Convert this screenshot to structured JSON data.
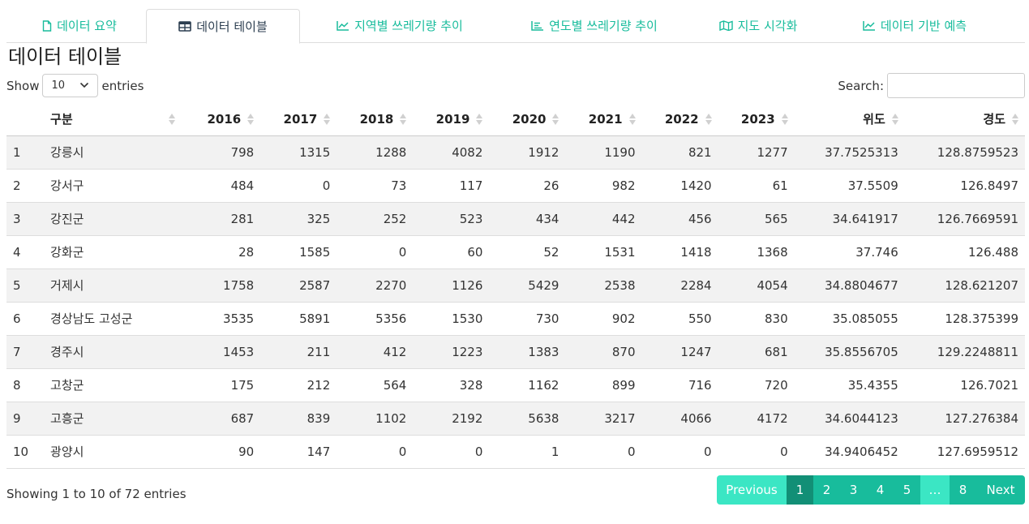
{
  "tabs": [
    {
      "label": "데이터 요약",
      "icon": "file-icon"
    },
    {
      "label": "데이터 테이블",
      "icon": "table-icon"
    },
    {
      "label": "지역별 쓰레기량 추이",
      "icon": "line-chart-icon"
    },
    {
      "label": "연도별 쓰레기량 추이",
      "icon": "bar-chart-icon"
    },
    {
      "label": "지도 시각화",
      "icon": "map-icon"
    },
    {
      "label": "데이터 기반 예측",
      "icon": "line-chart-icon"
    }
  ],
  "active_tab": "데이터 테이블",
  "page_title": "데이터 테이블",
  "length": {
    "show": "Show",
    "value": "10",
    "entries": "entries"
  },
  "search": {
    "label": "Search:",
    "value": ""
  },
  "table": {
    "headers": [
      "",
      "구분",
      "2016",
      "2017",
      "2018",
      "2019",
      "2020",
      "2021",
      "2022",
      "2023",
      "위도",
      "경도"
    ],
    "rows": [
      [
        "1",
        "강릉시",
        "798",
        "1315",
        "1288",
        "4082",
        "1912",
        "1190",
        "821",
        "1277",
        "37.7525313",
        "128.8759523"
      ],
      [
        "2",
        "강서구",
        "484",
        "0",
        "73",
        "117",
        "26",
        "982",
        "1420",
        "61",
        "37.5509",
        "126.8497"
      ],
      [
        "3",
        "강진군",
        "281",
        "325",
        "252",
        "523",
        "434",
        "442",
        "456",
        "565",
        "34.641917",
        "126.7669591"
      ],
      [
        "4",
        "강화군",
        "28",
        "1585",
        "0",
        "60",
        "52",
        "1531",
        "1418",
        "1368",
        "37.746",
        "126.488"
      ],
      [
        "5",
        "거제시",
        "1758",
        "2587",
        "2270",
        "1126",
        "5429",
        "2538",
        "2284",
        "4054",
        "34.8804677",
        "128.621207"
      ],
      [
        "6",
        "경상남도 고성군",
        "3535",
        "5891",
        "5356",
        "1530",
        "730",
        "902",
        "550",
        "830",
        "35.085055",
        "128.375399"
      ],
      [
        "7",
        "경주시",
        "1453",
        "211",
        "412",
        "1223",
        "1383",
        "870",
        "1247",
        "681",
        "35.8556705",
        "129.2248811"
      ],
      [
        "8",
        "고창군",
        "175",
        "212",
        "564",
        "328",
        "1162",
        "899",
        "716",
        "720",
        "35.4355",
        "126.7021"
      ],
      [
        "9",
        "고흥군",
        "687",
        "839",
        "1102",
        "2192",
        "5638",
        "3217",
        "4066",
        "4172",
        "34.6044123",
        "127.276384"
      ],
      [
        "10",
        "광양시",
        "90",
        "147",
        "0",
        "0",
        "1",
        "0",
        "0",
        "0",
        "34.9406452",
        "127.6959512"
      ]
    ]
  },
  "info": "Showing 1 to 10 of 72 entries",
  "pagination": {
    "previous": "Previous",
    "pages": [
      "1",
      "2",
      "3",
      "4",
      "5",
      "…",
      "8"
    ],
    "current": "1",
    "next": "Next"
  },
  "colors": {
    "accent": "#18bc9c",
    "accent_light": "#3be6c4",
    "accent_dark": "#128f76",
    "stripe": "#f2f2f2"
  }
}
